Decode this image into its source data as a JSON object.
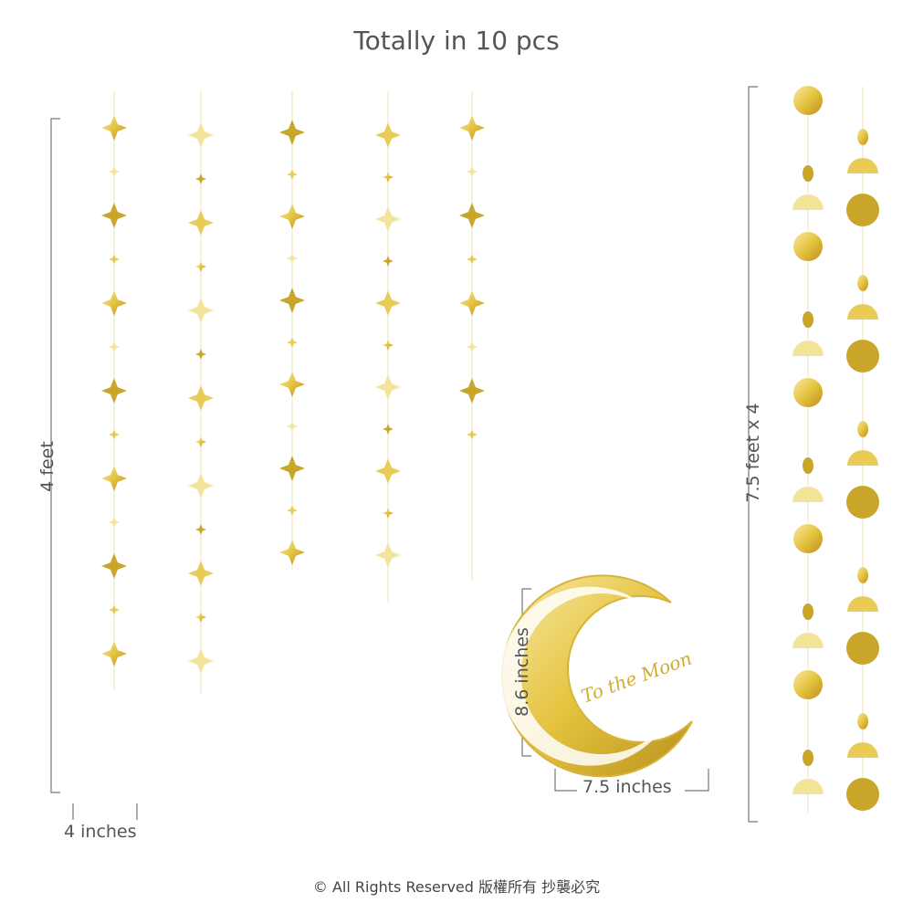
{
  "title": "Totally in 10 pcs",
  "labels": {
    "strand_length": "4 feet",
    "strand_width": "4 inches",
    "moon_height": "8.6 inches",
    "moon_width": "7.5 inches",
    "garland_length": "7.5 feet x 4"
  },
  "moon_lettering": "To the Moon",
  "copyright": "© All Rights Reserved 版權所有 抄襲必究",
  "colors": {
    "gold": "#e8c84a",
    "gold_light": "#f6e7a2",
    "gold_dark": "#b58f1c",
    "text": "#555555"
  }
}
